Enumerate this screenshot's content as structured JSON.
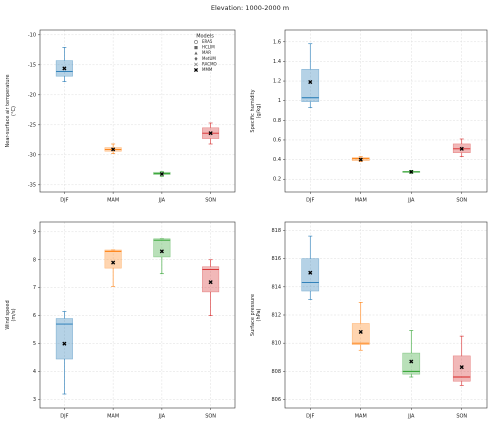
{
  "title": "Elevation: 1000-2000 m",
  "chart_data": [
    {
      "type": "box",
      "ylabel": [
        "Near-surface air temperature",
        "(°C)"
      ],
      "categories": [
        "DJF",
        "MAM",
        "JJA",
        "SON"
      ],
      "colors": [
        "#1f77b4",
        "#ff7f0e",
        "#2ca02c",
        "#d62728"
      ],
      "boxes": [
        {
          "whislo": -17.8,
          "q1": -16.9,
          "med": -16.1,
          "q3": -14.3,
          "whishi": -12.1,
          "mean": -15.6
        },
        {
          "whislo": -29.8,
          "q1": -29.4,
          "med": -29.1,
          "q3": -28.8,
          "whishi": -28.2,
          "mean": -29.1
        },
        {
          "whislo": -33.6,
          "q1": -33.3,
          "med": -33.1,
          "q3": -32.9,
          "whishi": -32.8,
          "mean": -33.2
        },
        {
          "whislo": -28.2,
          "q1": -27.3,
          "med": -26.4,
          "q3": -25.5,
          "whishi": -24.7,
          "mean": -26.4
        }
      ],
      "ylim": [
        -36.2,
        -9.2
      ],
      "yticks": [
        -35,
        -30,
        -25,
        -20,
        -15,
        -10
      ],
      "grid": true,
      "legend": {
        "title": "Models",
        "loc": "upper right",
        "entries": [
          {
            "name": "ERA5",
            "marker": "circle"
          },
          {
            "name": "HCLIM",
            "marker": "square"
          },
          {
            "name": "MAR",
            "marker": "triangle"
          },
          {
            "name": "MetUM",
            "marker": "diamond"
          },
          {
            "name": "RACMO",
            "marker": "x"
          },
          {
            "name": "MMM",
            "marker": "X"
          }
        ]
      }
    },
    {
      "type": "box",
      "ylabel": [
        "Specific humidity",
        "(g/kg)"
      ],
      "categories": [
        "DJF",
        "MAM",
        "JJA",
        "SON"
      ],
      "colors": [
        "#1f77b4",
        "#ff7f0e",
        "#2ca02c",
        "#d62728"
      ],
      "boxes": [
        {
          "whislo": 0.93,
          "q1": 0.99,
          "med": 1.03,
          "q3": 1.32,
          "whishi": 1.58,
          "mean": 1.19
        },
        {
          "whislo": 0.38,
          "q1": 0.39,
          "med": 0.41,
          "q3": 0.42,
          "whishi": 0.43,
          "mean": 0.4
        },
        {
          "whislo": 0.26,
          "q1": 0.27,
          "med": 0.275,
          "q3": 0.28,
          "whishi": 0.29,
          "mean": 0.275
        },
        {
          "whislo": 0.43,
          "q1": 0.47,
          "med": 0.51,
          "q3": 0.56,
          "whishi": 0.61,
          "mean": 0.51
        }
      ],
      "ylim": [
        0.07,
        1.72
      ],
      "yticks": [
        0.2,
        0.4,
        0.6,
        0.8,
        1.0,
        1.2,
        1.4,
        1.6
      ],
      "grid": true
    },
    {
      "type": "box",
      "ylabel": [
        "Wind speed",
        "(m/s)"
      ],
      "categories": [
        "DJF",
        "MAM",
        "JJA",
        "SON"
      ],
      "colors": [
        "#1f77b4",
        "#ff7f0e",
        "#2ca02c",
        "#d62728"
      ],
      "boxes": [
        {
          "whislo": 3.2,
          "q1": 4.45,
          "med": 5.7,
          "q3": 5.9,
          "whishi": 6.15,
          "mean": 5.0
        },
        {
          "whislo": 7.05,
          "q1": 7.7,
          "med": 8.3,
          "q3": 8.35,
          "whishi": 8.35,
          "mean": 7.9
        },
        {
          "whislo": 7.5,
          "q1": 8.1,
          "med": 8.7,
          "q3": 8.75,
          "whishi": 8.75,
          "mean": 8.3
        },
        {
          "whislo": 6.0,
          "q1": 6.85,
          "med": 7.65,
          "q3": 7.75,
          "whishi": 8.0,
          "mean": 7.2
        }
      ],
      "ylim": [
        2.7,
        9.35
      ],
      "yticks": [
        3,
        4,
        5,
        6,
        7,
        8,
        9
      ],
      "grid": true
    },
    {
      "type": "box",
      "ylabel": [
        "Surface pressure",
        "(hPa)"
      ],
      "categories": [
        "DJF",
        "MAM",
        "JJA",
        "SON"
      ],
      "colors": [
        "#1f77b4",
        "#ff7f0e",
        "#2ca02c",
        "#d62728"
      ],
      "boxes": [
        {
          "whislo": 813.1,
          "q1": 813.7,
          "med": 814.3,
          "q3": 816.0,
          "whishi": 817.6,
          "mean": 815.0
        },
        {
          "whislo": 809.5,
          "q1": 809.9,
          "med": 810.0,
          "q3": 811.4,
          "whishi": 812.9,
          "mean": 810.8
        },
        {
          "whislo": 807.6,
          "q1": 807.8,
          "med": 808.0,
          "q3": 809.3,
          "whishi": 810.9,
          "mean": 808.7
        },
        {
          "whislo": 807.0,
          "q1": 807.3,
          "med": 807.6,
          "q3": 809.1,
          "whishi": 810.5,
          "mean": 808.3
        }
      ],
      "ylim": [
        805.4,
        818.6
      ],
      "yticks": [
        806,
        808,
        810,
        812,
        814,
        816,
        818
      ],
      "grid": true
    }
  ]
}
